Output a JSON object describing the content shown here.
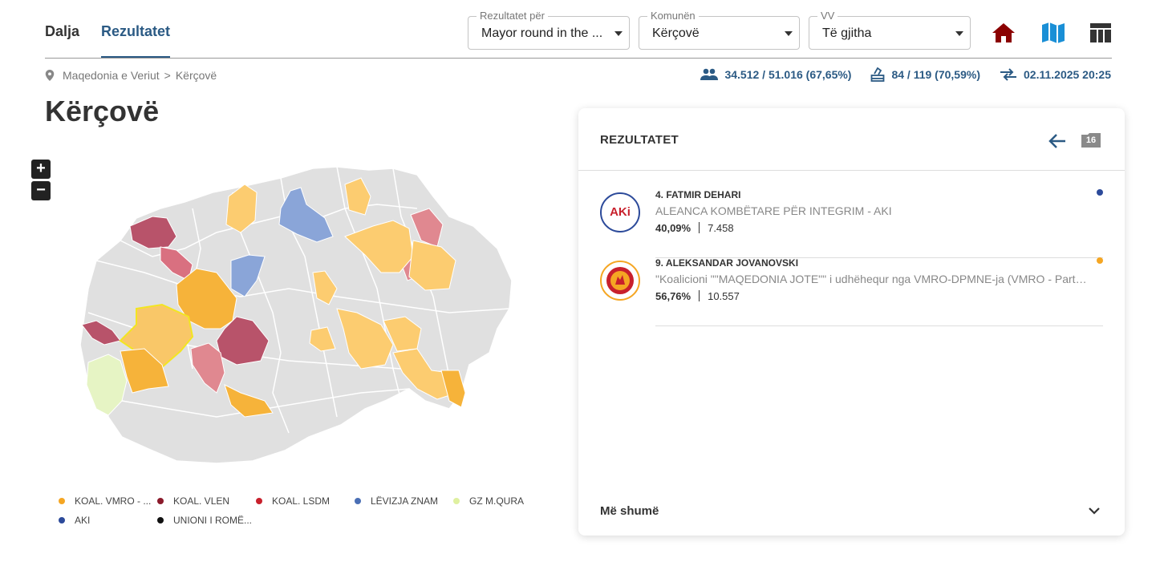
{
  "tabs": [
    {
      "label": "Dalja",
      "active": false
    },
    {
      "label": "Rezultatet",
      "active": true
    }
  ],
  "selects": {
    "round": {
      "label": "Rezultatet për",
      "value": "Mayor round in the ..."
    },
    "municipality": {
      "label": "Komunën",
      "value": "Kërçovë"
    },
    "polling": {
      "label": "VV",
      "value": "Të gjitha"
    }
  },
  "header_icons": [
    "home-icon",
    "map-icon",
    "table-icon"
  ],
  "breadcrumb": {
    "root": "Maqedonia e Veriut",
    "separator": ">",
    "current": "Kërçovë"
  },
  "stats": {
    "turnout": "34.512 / 51.016 (67,65%)",
    "stations": "84 / 119 (70,59%)",
    "updated": "02.11.2025 20:25"
  },
  "page_title": "Kërçovë",
  "map": {
    "zoom_in": "+",
    "zoom_out": "−"
  },
  "legend": [
    {
      "label": "KOAL. VMRO - ...",
      "color": "#f5a623"
    },
    {
      "label": "KOAL. VLEN",
      "color": "#8b1a2b"
    },
    {
      "label": "KOAL. LSDM",
      "color": "#c8202c"
    },
    {
      "label": "LËVIZJA ZNAM",
      "color": "#4a6fb5"
    },
    {
      "label": "GZ M.QURA",
      "color": "#dff0a0"
    },
    {
      "label": "AKI",
      "color": "#2c4a9a"
    },
    {
      "label": "UNIONI I ROMË...",
      "color": "#111111"
    }
  ],
  "panel": {
    "title": "REZULTATET",
    "badge": "16",
    "more_label": "Më shumë",
    "candidates": [
      {
        "name": "4. FATMIR DEHARI",
        "party": "ALEANCA KOMBËTARE PËR INTEGRIM - AKI",
        "percent": "40,09%",
        "votes": "7.458",
        "color": "#2c4a9a",
        "logo_text": "AKi"
      },
      {
        "name": "9. ALEKSANDAR JOVANOVSKI",
        "party": "\"Koalicioni \"\"MAQEDONIA JOTE\"\" i udhëhequr nga VMRO-DPMNE-ja (VMRO - Partia...",
        "percent": "56,76%",
        "votes": "10.557",
        "color": "#f5a623"
      }
    ]
  }
}
